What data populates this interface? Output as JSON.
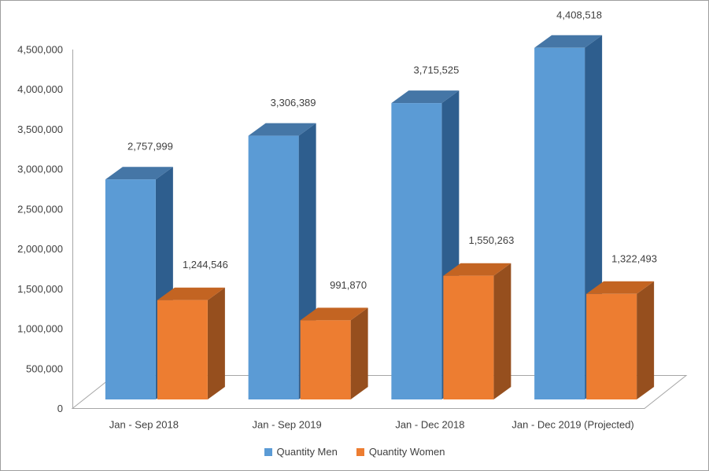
{
  "window": {
    "background": "#FFFFFF",
    "border_color": "#9E9E9E"
  },
  "chart_data": {
    "type": "bar",
    "effect": "3d-clustered-column",
    "title": "",
    "xlabel": "",
    "ylabel": "",
    "categories": [
      "Jan - Sep 2018",
      "Jan - Sep 2019",
      "Jan - Dec 2018",
      "Jan - Dec 2019 (Projected)"
    ],
    "series": [
      {
        "name": "Quantity Men",
        "color": "#5B9BD5",
        "color_top": "#4576A6",
        "color_side": "#2E5E8E",
        "values": [
          2757999,
          3306389,
          3715525,
          4408518
        ],
        "data_labels": [
          "2,757,999",
          "3,306,389",
          "3,715,525",
          "4,408,518"
        ]
      },
      {
        "name": "Quantity Women",
        "color": "#ED7D31",
        "color_top": "#C36422",
        "color_side": "#964F1E",
        "values": [
          1244546,
          991870,
          1550263,
          1322493
        ],
        "data_labels": [
          "1,244,546",
          "991,870",
          "1,550,263",
          "1,322,493"
        ]
      }
    ],
    "y_axis": {
      "ticks": [
        "0",
        "500,000",
        "1,000,000",
        "1,500,000",
        "2,000,000",
        "2,500,000",
        "3,000,000",
        "3,500,000",
        "4,000,000",
        "4,500,000"
      ],
      "tick_interval": 500000,
      "min": 0,
      "max": 4500000
    },
    "legend": {
      "position": "bottom"
    },
    "grid": false,
    "text_color": "#3F3F3F",
    "axis_line_color": "#A6A6A6"
  }
}
